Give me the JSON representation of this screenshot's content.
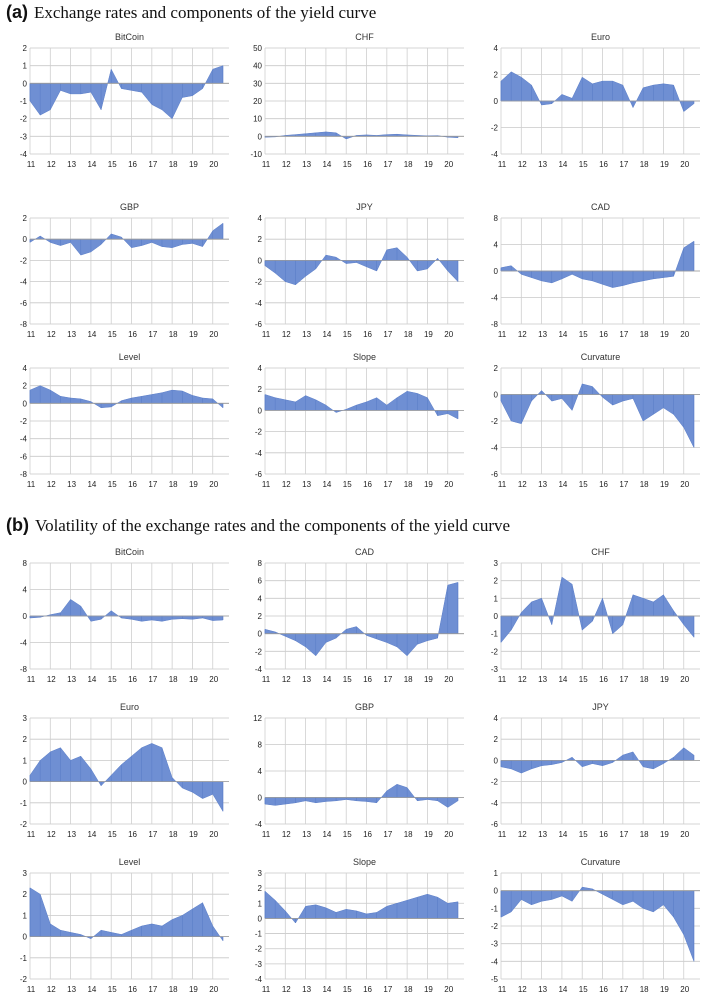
{
  "section_a": {
    "label": "(a)",
    "title": "Exchange rates and components of the yield curve"
  },
  "section_b": {
    "label": "(b)",
    "title": "Volatility of the exchange rates and the components of the yield curve"
  },
  "style": {
    "fill_color": "#6f8fd3",
    "stroke_color": "#5b7ec8"
  },
  "chart_data": [
    {
      "id": "a-bitcoin",
      "type": "area",
      "title": "BitCoin",
      "ylim": [
        -4,
        2
      ],
      "yticks": [
        2,
        1,
        0,
        -1,
        -2,
        -3,
        -4
      ],
      "xticks": [
        "11",
        "12",
        "13",
        "14",
        "15",
        "16",
        "17",
        "18",
        "19",
        "20"
      ],
      "x": [
        11,
        11.5,
        12,
        12.5,
        13,
        13.5,
        14,
        14.5,
        15,
        15.5,
        16,
        16.5,
        17,
        17.5,
        18,
        18.5,
        19,
        19.5,
        20,
        20.5
      ],
      "values": [
        -1.0,
        -1.8,
        -1.5,
        -0.4,
        -0.6,
        -0.6,
        -0.5,
        -1.5,
        0.8,
        -0.3,
        -0.4,
        -0.5,
        -1.2,
        -1.5,
        -2.0,
        -0.8,
        -0.7,
        -0.3,
        0.8,
        1.0
      ]
    },
    {
      "id": "a-chf",
      "type": "area",
      "title": "CHF",
      "ylim": [
        -10,
        50
      ],
      "yticks": [
        50,
        40,
        30,
        20,
        10,
        0,
        -10
      ],
      "xticks": [
        "11",
        "12",
        "13",
        "14",
        "15",
        "16",
        "17",
        "18",
        "19",
        "20"
      ],
      "x": [
        11,
        11.5,
        12,
        12.5,
        13,
        13.5,
        14,
        14.5,
        15,
        15.5,
        16,
        16.5,
        17,
        17.5,
        18,
        18.5,
        19,
        19.5,
        20,
        20.5
      ],
      "values": [
        -0.5,
        -0.3,
        0.5,
        1.0,
        1.5,
        2.0,
        2.5,
        2.0,
        -1.5,
        0.5,
        0.8,
        0.5,
        1.0,
        1.2,
        0.8,
        0.5,
        0.3,
        0.4,
        -0.5,
        -0.8
      ]
    },
    {
      "id": "a-euro",
      "type": "area",
      "title": "Euro",
      "ylim": [
        -4,
        4
      ],
      "yticks": [
        4,
        2,
        0,
        -2,
        -4
      ],
      "xticks": [
        "11",
        "12",
        "13",
        "14",
        "15",
        "16",
        "17",
        "18",
        "19",
        "20"
      ],
      "x": [
        11,
        11.5,
        12,
        12.5,
        13,
        13.5,
        14,
        14.5,
        15,
        15.5,
        16,
        16.5,
        17,
        17.5,
        18,
        18.5,
        19,
        19.5,
        20,
        20.5
      ],
      "values": [
        1.5,
        2.2,
        1.8,
        1.2,
        -0.3,
        -0.2,
        0.5,
        0.2,
        1.8,
        1.3,
        1.5,
        1.5,
        1.2,
        -0.5,
        1.0,
        1.2,
        1.3,
        1.2,
        -0.8,
        -0.2
      ]
    },
    {
      "id": "a-gbp",
      "type": "area",
      "title": "GBP",
      "ylim": [
        -8,
        2
      ],
      "yticks": [
        2,
        0,
        -2,
        -4,
        -6,
        -8
      ],
      "xticks": [
        "11",
        "12",
        "13",
        "14",
        "15",
        "16",
        "17",
        "18",
        "19",
        "20"
      ],
      "x": [
        11,
        11.5,
        12,
        12.5,
        13,
        13.5,
        14,
        14.5,
        15,
        15.5,
        16,
        16.5,
        17,
        17.5,
        18,
        18.5,
        19,
        19.5,
        20,
        20.5
      ],
      "values": [
        -0.3,
        0.3,
        -0.3,
        -0.6,
        -0.3,
        -1.5,
        -1.2,
        -0.5,
        0.5,
        0.2,
        -0.8,
        -0.6,
        -0.3,
        -0.7,
        -0.8,
        -0.5,
        -0.4,
        -0.7,
        0.8,
        1.5
      ]
    },
    {
      "id": "a-jpy",
      "type": "area",
      "title": "JPY",
      "ylim": [
        -6,
        4
      ],
      "yticks": [
        4,
        2,
        0,
        -2,
        -4,
        -6
      ],
      "xticks": [
        "11",
        "12",
        "13",
        "14",
        "15",
        "16",
        "17",
        "18",
        "19",
        "20"
      ],
      "x": [
        11,
        11.5,
        12,
        12.5,
        13,
        13.5,
        14,
        14.5,
        15,
        15.5,
        16,
        16.5,
        17,
        17.5,
        18,
        18.5,
        19,
        19.5,
        20,
        20.5
      ],
      "values": [
        -0.5,
        -1.2,
        -2.0,
        -2.3,
        -1.5,
        -0.8,
        0.5,
        0.3,
        -0.3,
        -0.2,
        -0.6,
        -1.0,
        1.0,
        1.2,
        0.3,
        -1.0,
        -0.8,
        0.2,
        -1.0,
        -2.0
      ]
    },
    {
      "id": "a-cad",
      "type": "area",
      "title": "CAD",
      "ylim": [
        -8,
        8
      ],
      "yticks": [
        8,
        4,
        0,
        -4,
        -8
      ],
      "xticks": [
        "11",
        "12",
        "13",
        "14",
        "15",
        "16",
        "17",
        "18",
        "19",
        "20"
      ],
      "x": [
        11,
        11.5,
        12,
        12.5,
        13,
        13.5,
        14,
        14.5,
        15,
        15.5,
        16,
        16.5,
        17,
        17.5,
        18,
        18.5,
        19,
        19.5,
        20,
        20.5
      ],
      "values": [
        0.5,
        0.8,
        -0.5,
        -1.0,
        -1.5,
        -1.8,
        -1.2,
        -0.5,
        -1.2,
        -1.5,
        -2.0,
        -2.5,
        -2.2,
        -1.8,
        -1.5,
        -1.2,
        -1.0,
        -0.8,
        3.5,
        4.5
      ]
    },
    {
      "id": "a-level",
      "type": "area",
      "title": "Level",
      "ylim": [
        -8,
        4
      ],
      "yticks": [
        4,
        2,
        0,
        -2,
        -4,
        -6,
        -8
      ],
      "xticks": [
        "11",
        "12",
        "13",
        "14",
        "15",
        "16",
        "17",
        "18",
        "19",
        "20"
      ],
      "x": [
        11,
        11.5,
        12,
        12.5,
        13,
        13.5,
        14,
        14.5,
        15,
        15.5,
        16,
        16.5,
        17,
        17.5,
        18,
        18.5,
        19,
        19.5,
        20,
        20.5
      ],
      "values": [
        1.5,
        2.0,
        1.5,
        0.8,
        0.6,
        0.5,
        0.2,
        -0.5,
        -0.4,
        0.3,
        0.6,
        0.8,
        1.0,
        1.2,
        1.5,
        1.4,
        0.9,
        0.6,
        0.5,
        -0.5
      ]
    },
    {
      "id": "a-slope",
      "type": "area",
      "title": "Slope",
      "ylim": [
        -6,
        4
      ],
      "yticks": [
        4,
        2,
        0,
        -2,
        -4,
        -6
      ],
      "xticks": [
        "11",
        "12",
        "13",
        "14",
        "15",
        "16",
        "17",
        "18",
        "19",
        "20"
      ],
      "x": [
        11,
        11.5,
        12,
        12.5,
        13,
        13.5,
        14,
        14.5,
        15,
        15.5,
        16,
        16.5,
        17,
        17.5,
        18,
        18.5,
        19,
        19.5,
        20,
        20.5
      ],
      "values": [
        1.5,
        1.2,
        1.0,
        0.8,
        1.4,
        1.0,
        0.5,
        -0.2,
        0.1,
        0.5,
        0.8,
        1.2,
        0.5,
        1.2,
        1.8,
        1.6,
        1.2,
        -0.5,
        -0.3,
        -0.8
      ]
    },
    {
      "id": "a-curvature",
      "type": "area",
      "title": "Curvature",
      "ylim": [
        -6,
        2
      ],
      "yticks": [
        2,
        0,
        -2,
        -4,
        -6
      ],
      "xticks": [
        "11",
        "12",
        "13",
        "14",
        "15",
        "16",
        "17",
        "18",
        "19",
        "20"
      ],
      "x": [
        11,
        11.5,
        12,
        12.5,
        13,
        13.5,
        14,
        14.5,
        15,
        15.5,
        16,
        16.5,
        17,
        17.5,
        18,
        18.5,
        19,
        19.5,
        20,
        20.5
      ],
      "values": [
        -0.5,
        -2.0,
        -2.2,
        -0.5,
        0.3,
        -0.5,
        -0.3,
        -1.2,
        0.8,
        0.6,
        -0.2,
        -0.8,
        -0.5,
        -0.3,
        -2.0,
        -1.5,
        -1.0,
        -1.5,
        -2.5,
        -4.0
      ]
    },
    {
      "id": "b-bitcoin",
      "type": "area",
      "title": "BitCoin",
      "ylim": [
        -8,
        8
      ],
      "yticks": [
        8,
        4,
        0,
        -4,
        -8
      ],
      "xticks": [
        "11",
        "12",
        "13",
        "14",
        "15",
        "16",
        "17",
        "18",
        "19",
        "20"
      ],
      "x": [
        11,
        11.5,
        12,
        12.5,
        13,
        13.5,
        14,
        14.5,
        15,
        15.5,
        16,
        16.5,
        17,
        17.5,
        18,
        18.5,
        19,
        19.5,
        20,
        20.5
      ],
      "values": [
        -0.3,
        -0.2,
        0.2,
        0.5,
        2.5,
        1.5,
        -0.8,
        -0.5,
        0.8,
        -0.3,
        -0.5,
        -0.8,
        -0.6,
        -0.8,
        -0.5,
        -0.4,
        -0.5,
        -0.3,
        -0.7,
        -0.6
      ]
    },
    {
      "id": "b-cad",
      "type": "area",
      "title": "CAD",
      "ylim": [
        -4,
        8
      ],
      "yticks": [
        8,
        6,
        4,
        2,
        0,
        -2,
        -4
      ],
      "xticks": [
        "11",
        "12",
        "13",
        "14",
        "15",
        "16",
        "17",
        "18",
        "19",
        "20"
      ],
      "x": [
        11,
        11.5,
        12,
        12.5,
        13,
        13.5,
        14,
        14.5,
        15,
        15.5,
        16,
        16.5,
        17,
        17.5,
        18,
        18.5,
        19,
        19.5,
        20,
        20.5
      ],
      "values": [
        0.5,
        0.2,
        -0.3,
        -0.8,
        -1.5,
        -2.5,
        -1.0,
        -0.5,
        0.5,
        0.8,
        -0.2,
        -0.6,
        -1.0,
        -1.5,
        -2.5,
        -1.2,
        -0.8,
        -0.5,
        5.5,
        5.8
      ]
    },
    {
      "id": "b-chf",
      "type": "area",
      "title": "CHF",
      "ylim": [
        -3,
        3
      ],
      "yticks": [
        3,
        2,
        1,
        0,
        -1,
        -2,
        -3
      ],
      "xticks": [
        "11",
        "12",
        "13",
        "14",
        "15",
        "16",
        "17",
        "18",
        "19",
        "20"
      ],
      "x": [
        11,
        11.5,
        12,
        12.5,
        13,
        13.5,
        14,
        14.5,
        15,
        15.5,
        16,
        16.5,
        17,
        17.5,
        18,
        18.5,
        19,
        19.5,
        20,
        20.5
      ],
      "values": [
        -1.5,
        -0.8,
        0.2,
        0.8,
        1.0,
        -0.5,
        2.2,
        1.8,
        -0.8,
        -0.3,
        1.0,
        -1.0,
        -0.5,
        1.2,
        1.0,
        0.8,
        1.2,
        0.3,
        -0.5,
        -1.2
      ]
    },
    {
      "id": "b-euro",
      "type": "area",
      "title": "Euro",
      "ylim": [
        -2,
        3
      ],
      "yticks": [
        3,
        2,
        1,
        0,
        -1,
        -2
      ],
      "xticks": [
        "11",
        "12",
        "13",
        "14",
        "15",
        "16",
        "17",
        "18",
        "19",
        "20"
      ],
      "x": [
        11,
        11.5,
        12,
        12.5,
        13,
        13.5,
        14,
        14.5,
        15,
        15.5,
        16,
        16.5,
        17,
        17.5,
        18,
        18.5,
        19,
        19.5,
        20,
        20.5
      ],
      "values": [
        0.3,
        1.0,
        1.4,
        1.6,
        1.0,
        1.2,
        0.6,
        -0.2,
        0.3,
        0.8,
        1.2,
        1.6,
        1.8,
        1.6,
        0.2,
        -0.3,
        -0.5,
        -0.8,
        -0.6,
        -1.4
      ]
    },
    {
      "id": "b-gbp",
      "type": "area",
      "title": "GBP",
      "ylim": [
        -4,
        12
      ],
      "yticks": [
        12,
        8,
        4,
        0,
        -4
      ],
      "xticks": [
        "11",
        "12",
        "13",
        "14",
        "15",
        "16",
        "17",
        "18",
        "19",
        "20"
      ],
      "x": [
        11,
        11.5,
        12,
        12.5,
        13,
        13.5,
        14,
        14.5,
        15,
        15.5,
        16,
        16.5,
        17,
        17.5,
        18,
        18.5,
        19,
        19.5,
        20,
        20.5
      ],
      "values": [
        -1.0,
        -1.2,
        -1.0,
        -0.8,
        -0.5,
        -0.8,
        -0.6,
        -0.5,
        -0.3,
        -0.5,
        -0.6,
        -0.8,
        1.0,
        2.0,
        1.5,
        -0.5,
        -0.3,
        -0.5,
        -1.5,
        -0.5
      ]
    },
    {
      "id": "b-jpy",
      "type": "area",
      "title": "JPY",
      "ylim": [
        -6,
        4
      ],
      "yticks": [
        4,
        2,
        0,
        -2,
        -4,
        -6
      ],
      "xticks": [
        "11",
        "12",
        "13",
        "14",
        "15",
        "16",
        "17",
        "18",
        "19",
        "20"
      ],
      "x": [
        11,
        11.5,
        12,
        12.5,
        13,
        13.5,
        14,
        14.5,
        15,
        15.5,
        16,
        16.5,
        17,
        17.5,
        18,
        18.5,
        19,
        19.5,
        20,
        20.5
      ],
      "values": [
        -0.6,
        -0.8,
        -1.2,
        -0.8,
        -0.5,
        -0.4,
        -0.2,
        0.3,
        -0.6,
        -0.3,
        -0.5,
        -0.2,
        0.5,
        0.8,
        -0.6,
        -0.8,
        -0.3,
        0.3,
        1.2,
        0.5
      ]
    },
    {
      "id": "b-level",
      "type": "area",
      "title": "Level",
      "ylim": [
        -2,
        3
      ],
      "yticks": [
        3,
        2,
        1,
        0,
        -1,
        -2
      ],
      "xticks": [
        "11",
        "12",
        "13",
        "14",
        "15",
        "16",
        "17",
        "18",
        "19",
        "20"
      ],
      "x": [
        11,
        11.5,
        12,
        12.5,
        13,
        13.5,
        14,
        14.5,
        15,
        15.5,
        16,
        16.5,
        17,
        17.5,
        18,
        18.5,
        19,
        19.5,
        20,
        20.5
      ],
      "values": [
        2.3,
        2.0,
        0.6,
        0.3,
        0.2,
        0.1,
        -0.1,
        0.3,
        0.2,
        0.1,
        0.3,
        0.5,
        0.6,
        0.5,
        0.8,
        1.0,
        1.3,
        1.6,
        0.5,
        -0.2
      ]
    },
    {
      "id": "b-slope",
      "type": "area",
      "title": "Slope",
      "ylim": [
        -4,
        3
      ],
      "yticks": [
        3,
        2,
        1,
        0,
        -1,
        -2,
        -3,
        -4
      ],
      "xticks": [
        "11",
        "12",
        "13",
        "14",
        "15",
        "16",
        "17",
        "18",
        "19",
        "20"
      ],
      "x": [
        11,
        11.5,
        12,
        12.5,
        13,
        13.5,
        14,
        14.5,
        15,
        15.5,
        16,
        16.5,
        17,
        17.5,
        18,
        18.5,
        19,
        19.5,
        20,
        20.5
      ],
      "values": [
        1.8,
        1.2,
        0.5,
        -0.3,
        0.8,
        0.9,
        0.7,
        0.4,
        0.6,
        0.5,
        0.3,
        0.4,
        0.8,
        1.0,
        1.2,
        1.4,
        1.6,
        1.4,
        1.0,
        1.1
      ]
    },
    {
      "id": "b-curvature",
      "type": "area",
      "title": "Curvature",
      "ylim": [
        -5,
        1
      ],
      "yticks": [
        1,
        0,
        -1,
        -2,
        -3,
        -4,
        -5
      ],
      "xticks": [
        "11",
        "12",
        "13",
        "14",
        "15",
        "16",
        "17",
        "18",
        "19",
        "20"
      ],
      "x": [
        11,
        11.5,
        12,
        12.5,
        13,
        13.5,
        14,
        14.5,
        15,
        15.5,
        16,
        16.5,
        17,
        17.5,
        18,
        18.5,
        19,
        19.5,
        20,
        20.5
      ],
      "values": [
        -1.5,
        -1.2,
        -0.5,
        -0.8,
        -0.6,
        -0.5,
        -0.3,
        -0.6,
        0.2,
        0.1,
        -0.2,
        -0.5,
        -0.8,
        -0.6,
        -1.0,
        -1.2,
        -0.8,
        -1.5,
        -2.5,
        -4.0
      ]
    }
  ]
}
